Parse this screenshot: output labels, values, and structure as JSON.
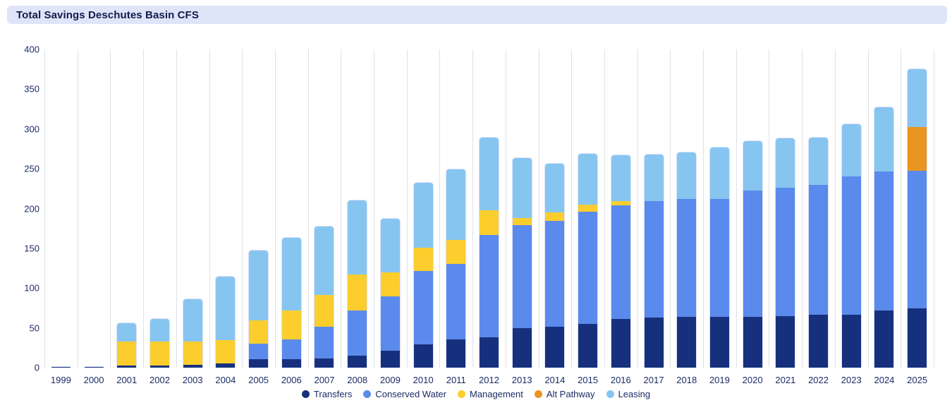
{
  "header": {
    "title": "Total Savings Deschutes Basin CFS"
  },
  "chart_data": {
    "type": "bar",
    "stacked": true,
    "title": "Total Savings Deschutes Basin CFS",
    "xlabel": "",
    "ylabel": "",
    "ylim": [
      0,
      400
    ],
    "ytick_step": 50,
    "grid": "vertical-category-boundaries",
    "legend_position": "bottom-center",
    "categories": [
      "1999",
      "2000",
      "2001",
      "2002",
      "2003",
      "2004",
      "2005",
      "2006",
      "2007",
      "2008",
      "2009",
      "2010",
      "2011",
      "2012",
      "2013",
      "2014",
      "2015",
      "2016",
      "2017",
      "2018",
      "2019",
      "2020",
      "2021",
      "2022",
      "2023",
      "2024",
      "2025"
    ],
    "series": [
      {
        "name": "Transfers",
        "color": "#17307d",
        "values": [
          2,
          2,
          3,
          3,
          4,
          5,
          11,
          11,
          12,
          15,
          21,
          29,
          36,
          38,
          50,
          52,
          55,
          61,
          63,
          64,
          64,
          64,
          65,
          67,
          67,
          72,
          75
        ]
      },
      {
        "name": "Conserved Water",
        "color": "#5a8aec",
        "values": [
          0,
          0,
          0,
          0,
          0,
          0,
          19,
          25,
          40,
          57,
          69,
          93,
          95,
          129,
          130,
          133,
          142,
          144,
          147,
          149,
          149,
          159,
          162,
          163,
          174,
          175,
          173
        ]
      },
      {
        "name": "Management",
        "color": "#fcce2d",
        "values": [
          0,
          0,
          30,
          30,
          29,
          30,
          30,
          36,
          40,
          46,
          30,
          29,
          30,
          31,
          9,
          11,
          9,
          5,
          0,
          0,
          0,
          0,
          0,
          0,
          0,
          0,
          0
        ]
      },
      {
        "name": "Alt Pathway",
        "color": "#ea9420",
        "values": [
          0,
          0,
          0,
          0,
          0,
          0,
          0,
          0,
          0,
          0,
          0,
          0,
          0,
          0,
          0,
          0,
          0,
          0,
          0,
          0,
          0,
          0,
          0,
          0,
          0,
          0,
          55
        ]
      },
      {
        "name": "Leasing",
        "color": "#87c5f1",
        "values": [
          0,
          0,
          24,
          29,
          54,
          80,
          88,
          92,
          86,
          93,
          68,
          82,
          89,
          92,
          75,
          61,
          64,
          58,
          59,
          58,
          65,
          63,
          62,
          60,
          66,
          81,
          73
        ]
      }
    ]
  },
  "colors": {
    "title_bar_bg": "#dfe5f9",
    "title_text": "#101c4a",
    "axis_label": "#1b2b66",
    "gridline": "#e1e1e4"
  }
}
